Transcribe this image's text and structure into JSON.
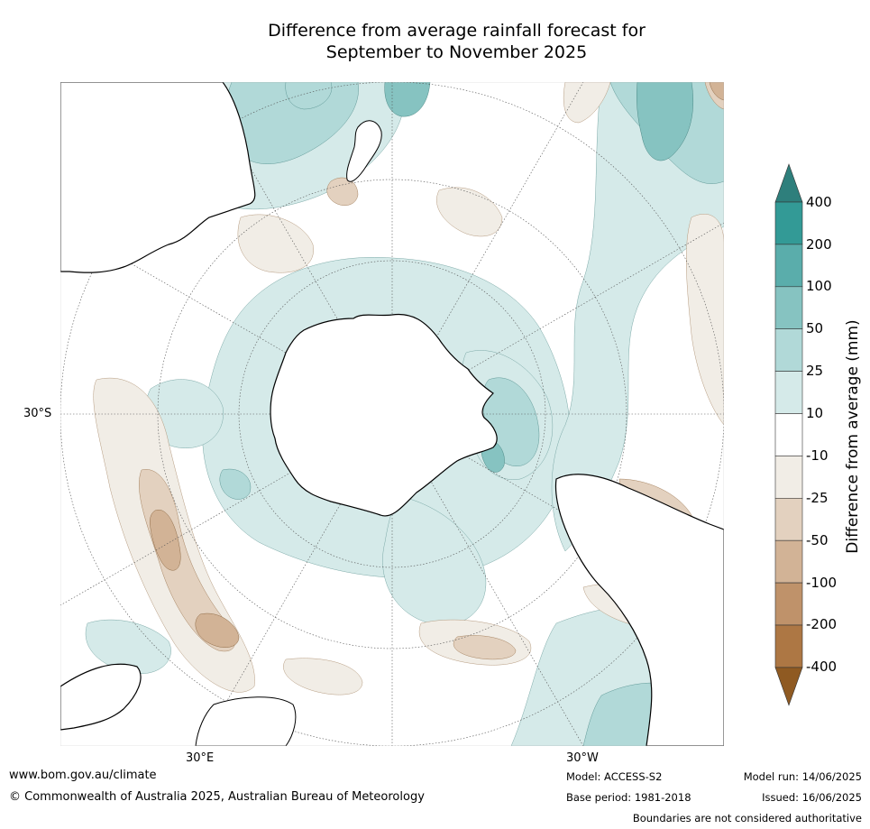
{
  "title": {
    "line1": "Difference from average rainfall forecast for",
    "line2": "September to November 2025"
  },
  "map": {
    "projection": "south-polar-stereographic",
    "lat_label": "30°S",
    "lon_label_left": "30°E",
    "lon_label_right": "30°W"
  },
  "colorbar": {
    "title": "Difference from average (mm)",
    "ticks": [
      "400",
      "200",
      "100",
      "50",
      "25",
      "10",
      "-10",
      "-25",
      "-50",
      "-100",
      "-200",
      "-400"
    ],
    "colors": [
      "#2e7f7c",
      "#339a96",
      "#5aadab",
      "#86c3c1",
      "#b1d9d8",
      "#d5eae9",
      "#ffffff",
      "#f1ede6",
      "#e3d1bf",
      "#d2b396",
      "#bf926a",
      "#ad7744",
      "#8f5a22"
    ]
  },
  "footer": {
    "website": "www.bom.gov.au/climate",
    "copyright": "© Commonwealth of Australia 2025, Australian Bureau of Meteorology",
    "model": "Model: ACCESS-S2",
    "base_period": "Base period: 1981-2018",
    "model_run": "Model run: 14/06/2025",
    "issued": "Issued: 16/06/2025",
    "disclaimer": "Boundaries are not considered authoritative"
  }
}
